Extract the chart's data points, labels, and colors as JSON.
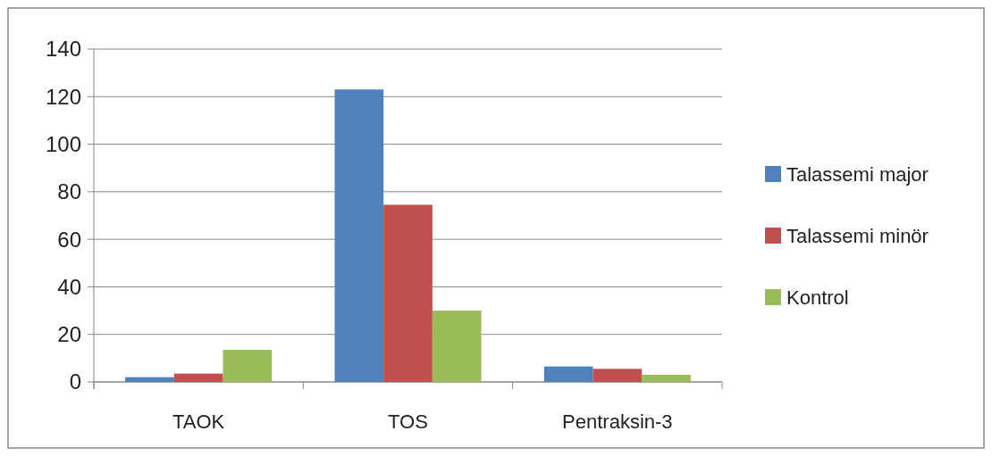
{
  "chart_data": {
    "type": "bar",
    "categories": [
      "TAOK",
      "TOS",
      "Pentraksin-3"
    ],
    "series": [
      {
        "name": "Talassemi major",
        "color": "#4f81bd",
        "values": [
          2,
          123,
          6.5
        ]
      },
      {
        "name": "Talassemi minör",
        "color": "#c0504d",
        "values": [
          3.5,
          74.5,
          5.5
        ]
      },
      {
        "name": "Kontrol",
        "color": "#9bbb59",
        "values": [
          13.5,
          30,
          3
        ]
      }
    ],
    "ylim": [
      0,
      140
    ],
    "yticks": [
      0,
      20,
      40,
      60,
      80,
      100,
      120,
      140
    ],
    "grid": "y",
    "legend": "right"
  }
}
